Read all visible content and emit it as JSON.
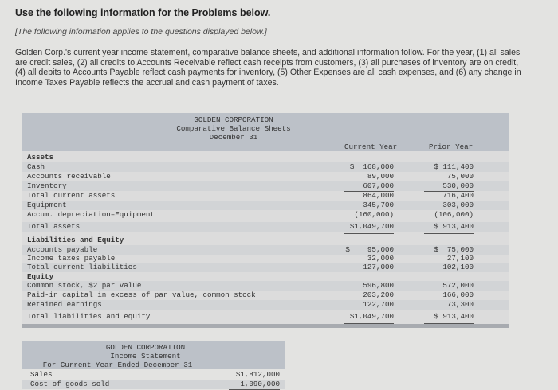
{
  "heading": "Use the following information for the Problems below.",
  "note": "[The following information applies to the questions displayed below.]",
  "paragraph": "Golden Corp.'s current year income statement, comparative balance sheets, and additional information follow. For the year, (1) all sales are credit sales, (2) all credits to Accounts Receivable reflect cash receipts from customers, (3) all purchases of inventory are on credit, (4) all debits to Accounts Payable reflect cash payments for inventory, (5) Other Expenses are all cash expenses, and (6) any change in Income Taxes Payable reflects the accrual and cash payment of taxes.",
  "balance_sheet": {
    "title": "GOLDEN CORPORATION",
    "subtitle": "Comparative Balance Sheets",
    "date": "December 31",
    "col_current": "Current Year",
    "col_prior": "Prior Year",
    "rows": [
      {
        "label": "Assets",
        "current": "",
        "prior": ""
      },
      {
        "label": "Cash",
        "current": "$  168,000",
        "prior": "$ 111,400"
      },
      {
        "label": "Accounts receivable",
        "current": "89,000",
        "prior": "75,000"
      },
      {
        "label": "Inventory",
        "current": "607,000",
        "prior": "530,000"
      },
      {
        "label": "Total current assets",
        "current": "864,000",
        "prior": "716,400"
      },
      {
        "label": "Equipment",
        "current": "345,700",
        "prior": "303,000"
      },
      {
        "label": "Accum. depreciation–Equipment",
        "current": "(160,000)",
        "prior": "(106,000)"
      },
      {
        "label": "Total assets",
        "current": "$1,049,700",
        "prior": "$ 913,400"
      },
      {
        "label": "Liabilities and Equity",
        "current": "",
        "prior": ""
      },
      {
        "label": "Accounts payable",
        "current": "$    95,000",
        "prior": "$  75,000"
      },
      {
        "label": "Income taxes payable",
        "current": "32,000",
        "prior": "27,100"
      },
      {
        "label": "Total current liabilities",
        "current": "127,000",
        "prior": "102,100"
      },
      {
        "label": "Equity",
        "current": "",
        "prior": ""
      },
      {
        "label": "Common stock, $2 par value",
        "current": "596,800",
        "prior": "572,000"
      },
      {
        "label": "Paid-in capital in excess of par value, common stock",
        "current": "203,200",
        "prior": "166,000"
      },
      {
        "label": "Retained earnings",
        "current": "122,700",
        "prior": "73,300"
      },
      {
        "label": "Total liabilities and equity",
        "current": "$1,049,700",
        "prior": "$ 913,400"
      }
    ]
  },
  "income_statement": {
    "title": "GOLDEN CORPORATION",
    "subtitle": "Income Statement",
    "period": "For Current Year Ended December 31",
    "rows": [
      {
        "label": "Sales",
        "amount": "$1,812,000"
      },
      {
        "label": "Cost of goods sold",
        "amount": "1,090,000"
      }
    ]
  }
}
